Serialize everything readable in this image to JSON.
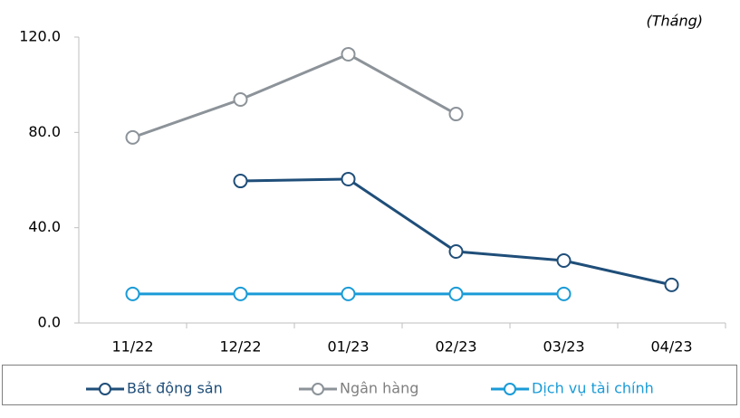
{
  "chart_data": {
    "type": "line",
    "annotation": "(Tháng)",
    "categories": [
      "11/22",
      "12/22",
      "01/23",
      "02/23",
      "03/23",
      "04/23"
    ],
    "series": [
      {
        "name": "Bất động sản",
        "color": "#1f4e79",
        "values": [
          null,
          59.6,
          60.4,
          30.0,
          26.2,
          16.0
        ]
      },
      {
        "name": "Ngân hàng",
        "color": "#8c9399",
        "values": [
          77.9,
          93.8,
          112.8,
          87.7,
          null,
          null
        ]
      },
      {
        "name": "Dịch vụ tài chính",
        "color": "#1a9bd7",
        "values": [
          12.2,
          12.2,
          12.2,
          12.2,
          12.2,
          null
        ]
      }
    ],
    "ylim": [
      0,
      120
    ],
    "yticks": [
      {
        "value": 0,
        "label": "0.0"
      },
      {
        "value": 40,
        "label": "40.0"
      },
      {
        "value": 80,
        "label": "80.0"
      },
      {
        "value": 120,
        "label": "120.0"
      }
    ],
    "grid": false,
    "legend": "bottom"
  }
}
